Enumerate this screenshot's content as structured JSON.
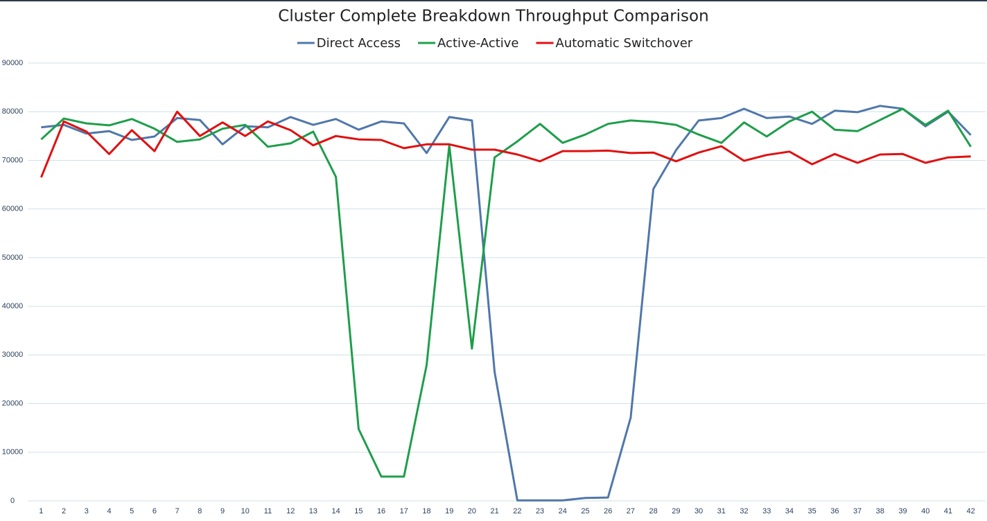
{
  "chart_data": {
    "type": "line",
    "title": "Cluster Complete Breakdown Throughput Comparison",
    "categories": [
      1,
      2,
      3,
      4,
      5,
      6,
      7,
      8,
      9,
      10,
      11,
      12,
      13,
      14,
      15,
      16,
      17,
      18,
      19,
      20,
      21,
      22,
      23,
      24,
      25,
      26,
      27,
      28,
      29,
      30,
      31,
      32,
      33,
      34,
      35,
      36,
      37,
      38,
      39,
      40,
      41,
      42
    ],
    "series": [
      {
        "name": "Direct Access",
        "color": "#4f77aa",
        "values": [
          76800,
          77300,
          75500,
          76000,
          74200,
          74900,
          78700,
          78300,
          73300,
          77000,
          76800,
          78900,
          77300,
          78500,
          76300,
          78000,
          77600,
          71500,
          78900,
          78200,
          26500,
          100,
          100,
          100,
          600,
          700,
          17100,
          64100,
          72100,
          78200,
          78700,
          80600,
          78700,
          79000,
          77500,
          80200,
          79900,
          81200,
          80600,
          77000,
          80000,
          75200
        ]
      },
      {
        "name": "Active-Active",
        "color": "#1e9e4a",
        "values": [
          74300,
          78600,
          77600,
          77200,
          78500,
          76500,
          73800,
          74300,
          76500,
          77300,
          72800,
          73500,
          75900,
          66600,
          14800,
          5000,
          5000,
          27900,
          73100,
          31300,
          70600,
          73900,
          77500,
          73600,
          75300,
          77500,
          78200,
          77900,
          77300,
          75300,
          73600,
          77800,
          74900,
          78000,
          80000,
          76300,
          76000,
          78300,
          80600,
          77300,
          80200,
          72800
        ]
      },
      {
        "name": "Automatic Switchover",
        "color": "#e01010",
        "values": [
          66500,
          78000,
          75900,
          71300,
          76200,
          71900,
          80000,
          75000,
          77800,
          75000,
          78000,
          76200,
          73100,
          75000,
          74300,
          74200,
          72500,
          73300,
          73300,
          72200,
          72200,
          71200,
          69800,
          71900,
          71900,
          72000,
          71500,
          71600,
          69800,
          71600,
          72900,
          69900,
          71100,
          71800,
          69200,
          71300,
          69500,
          71200,
          71300,
          69500,
          70600,
          70800
        ]
      }
    ],
    "ylim": [
      0,
      90000
    ],
    "yticks": [
      0,
      10000,
      20000,
      30000,
      40000,
      50000,
      60000,
      70000,
      80000,
      90000
    ],
    "grid": true,
    "legend": "top"
  }
}
